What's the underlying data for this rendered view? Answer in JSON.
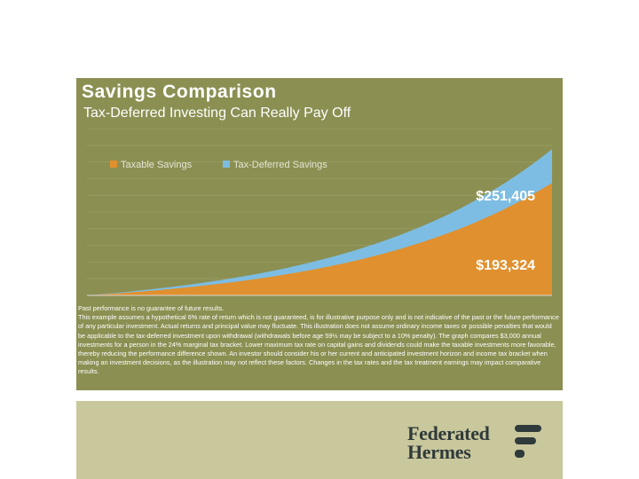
{
  "slide": {
    "title": "Savings Comparison",
    "subtitle": "Tax-Deferred Investing Can Really Pay Off",
    "disclaimer": [
      "Past performance is no guarantee of future results.",
      "This example assumes a hypothetical 6% rate of return which is not guaranteed, is for illustrative purpose only and is not indicative of the past or the future performance of any particular investment. Actual returns and principal value may fluctuate. This illustration does not assume ordinary income taxes or possible penalties that would be applicable to the tax-deferred investment upon withdrawal (withdrawals before age 59½ may be subject to a 10% penalty). The graph compares $3,000 annual investments for a person in the 24% marginal tax bracket. Lower maximum tax rate on capital gains and dividends could make the taxable investments more favorable, thereby reducing the performance difference shown. An investor should consider his or her current and anticipated investment horizon and income tax bracket when making an investment decisions, as the illustration may not reflect these factors. Changes in the tax rates and the tax treatment earnings may impact comparative results."
    ],
    "panel_color": "#8b8f52",
    "footer_color": "#c9c79c"
  },
  "logo": {
    "line1": "Federated",
    "line2": "Hermes",
    "color": "#2f3a3a"
  },
  "chart_data": {
    "type": "area",
    "stacked": true,
    "series": [
      {
        "name": "Taxable Savings",
        "color": "#e0902e",
        "final_value": 193324,
        "final_label": "$193,324"
      },
      {
        "name": "Tax-Deferred Savings",
        "color": "#7dbde3",
        "final_value": 251405,
        "final_label": "$251,405"
      }
    ],
    "annual_contribution": 3000,
    "rate_of_return": 0.06,
    "marginal_tax_rate": 0.24,
    "legend_position": "top-left",
    "grid": true,
    "data_labels_color": "#ffffff"
  }
}
